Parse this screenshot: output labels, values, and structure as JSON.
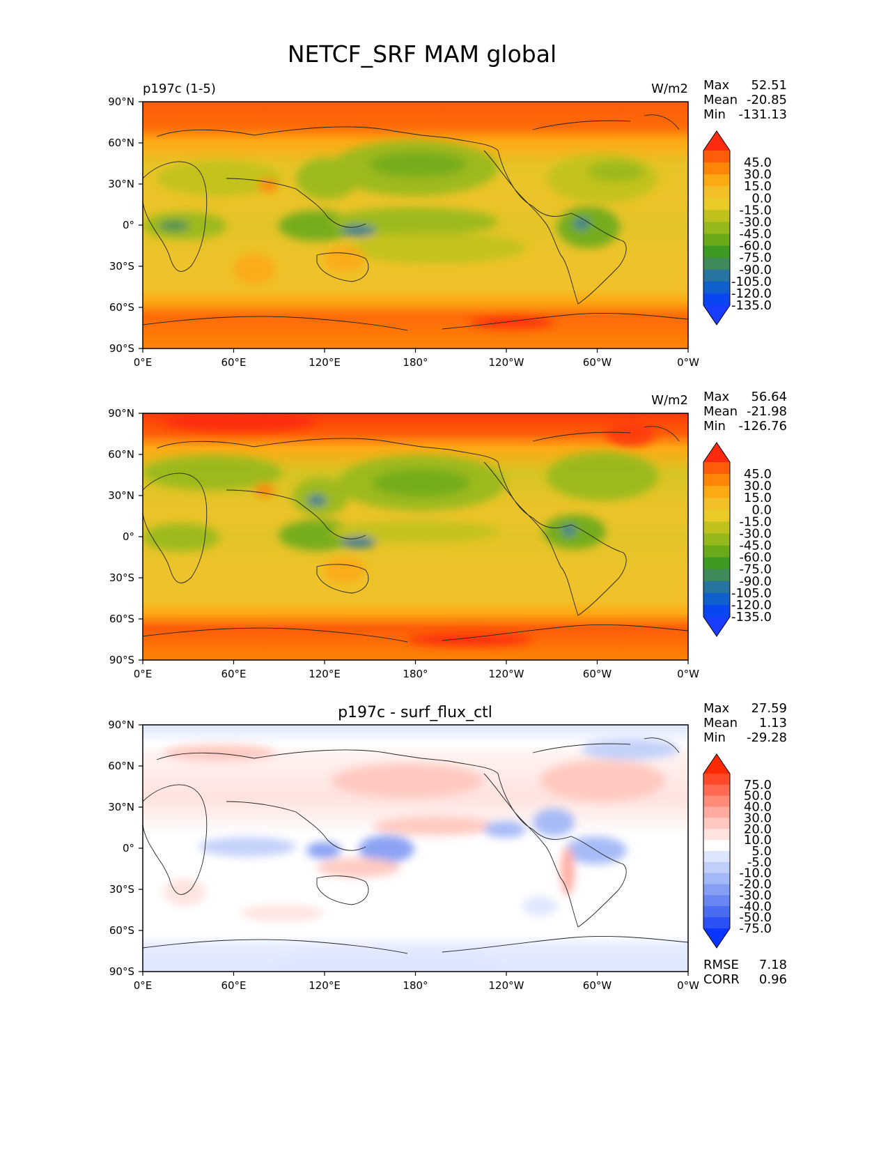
{
  "title": "NETCF_SRF MAM global",
  "lon_ticks": [
    "0°E",
    "60°E",
    "120°E",
    "180°",
    "120°W",
    "60°W",
    "0°W"
  ],
  "lat_ticks": [
    "90°N",
    "60°N",
    "30°N",
    "0°",
    "30°S",
    "60°S",
    "90°S"
  ],
  "panels": [
    {
      "left_title": "p197c (1-5)",
      "center_title": "",
      "units": "W/m2",
      "stats": [
        {
          "label": "Max",
          "value": "52.51"
        },
        {
          "label": "Mean",
          "value": "-20.85"
        },
        {
          "label": "Min",
          "value": "-131.13"
        }
      ],
      "colorbar_labels": [
        "45.0",
        "30.0",
        "15.0",
        "0.0",
        "-15.0",
        "-30.0",
        "-45.0",
        "-60.0",
        "-75.0",
        "-90.0",
        "-105.0",
        "-120.0",
        "-135.0"
      ],
      "colorbar_colors": [
        "#fd2a0f",
        "#fd5c08",
        "#fd8508",
        "#fda914",
        "#f4c02a",
        "#e9cb28",
        "#bfc21c",
        "#95b91a",
        "#6aaa1a",
        "#3d9a22",
        "#3e8a5a",
        "#2774a0",
        "#0f5fcc",
        "#0a46f0",
        "#1a3cff"
      ],
      "footer": []
    },
    {
      "left_title": "",
      "center_title": "",
      "units": "W/m2",
      "stats": [
        {
          "label": "Max",
          "value": "56.64"
        },
        {
          "label": "Mean",
          "value": "-21.98"
        },
        {
          "label": "Min",
          "value": "-126.76"
        }
      ],
      "colorbar_labels": [
        "45.0",
        "30.0",
        "15.0",
        "0.0",
        "-15.0",
        "-30.0",
        "-45.0",
        "-60.0",
        "-75.0",
        "-90.0",
        "-105.0",
        "-120.0",
        "-135.0"
      ],
      "colorbar_colors": [
        "#fd2a0f",
        "#fd5c08",
        "#fd8508",
        "#fda914",
        "#f4c02a",
        "#e9cb28",
        "#bfc21c",
        "#95b91a",
        "#6aaa1a",
        "#3d9a22",
        "#3e8a5a",
        "#2774a0",
        "#0f5fcc",
        "#0a46f0",
        "#1a3cff"
      ],
      "footer": []
    },
    {
      "left_title": "",
      "center_title": "p197c - surf_flux_ctl",
      "units": "",
      "stats": [
        {
          "label": "Max",
          "value": "27.59"
        },
        {
          "label": "Mean",
          "value": "1.13"
        },
        {
          "label": "Min",
          "value": "-29.28"
        }
      ],
      "colorbar_labels": [
        "75.0",
        "50.0",
        "40.0",
        "30.0",
        "20.0",
        "10.0",
        "5.0",
        "-5.0",
        "-10.0",
        "-20.0",
        "-30.0",
        "-40.0",
        "-50.0",
        "-75.0"
      ],
      "colorbar_colors": [
        "#ff2a00",
        "#ff4a2a",
        "#ff6b50",
        "#ff8c78",
        "#ffaba0",
        "#ffc8c0",
        "#ffe3df",
        "#ffffff",
        "#dde6ff",
        "#c0cffa",
        "#a3b8f7",
        "#869ff4",
        "#6886f1",
        "#4a6cf0",
        "#2b50f5",
        "#0a34ff"
      ],
      "footer": [
        {
          "label": "RMSE",
          "value": "7.18"
        },
        {
          "label": "CORR",
          "value": "0.96"
        }
      ]
    }
  ]
}
